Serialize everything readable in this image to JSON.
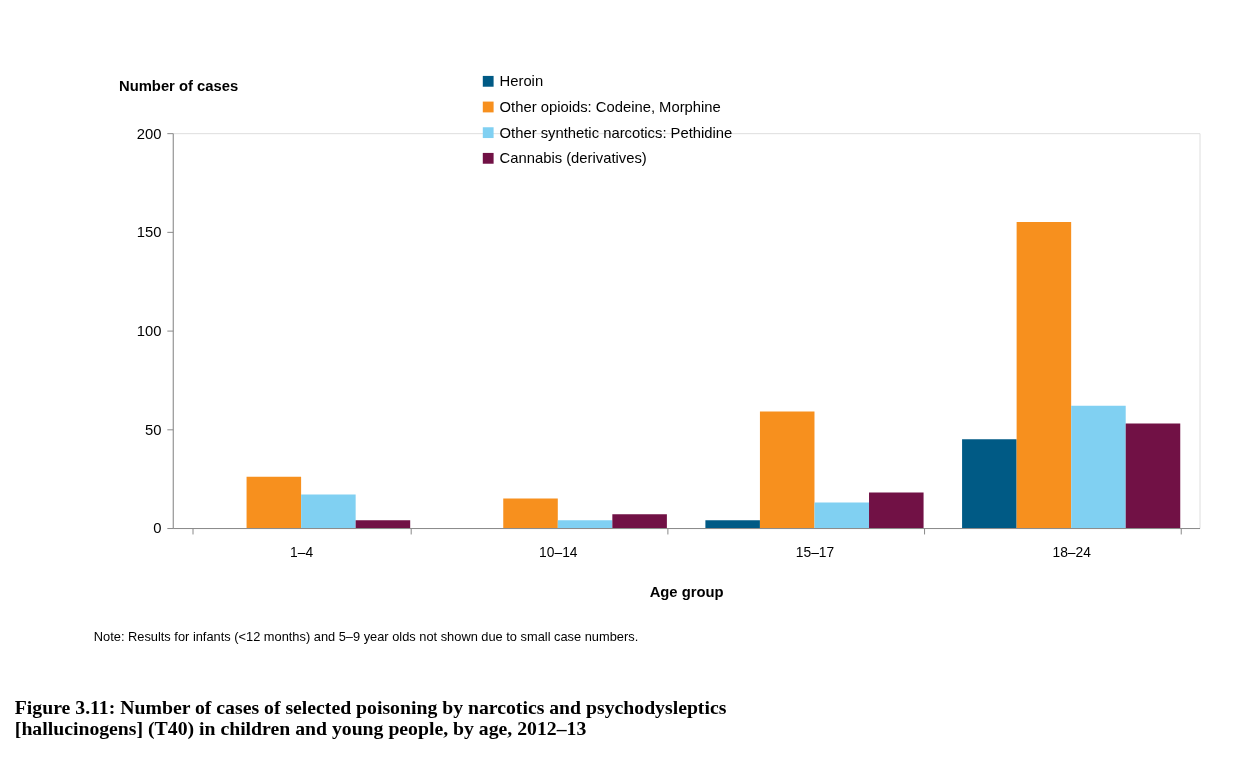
{
  "chart_data": {
    "type": "bar",
    "title": "Figure 3.11: Number of cases of selected poisoning by narcotics and psychodysleptics [hallucinogens] (T40) in children and young people, by age, 2012–13",
    "xlabel": "Age group",
    "ylabel": "Number of cases",
    "categories": [
      "1–4",
      "10–14",
      "15–17",
      "18–24"
    ],
    "series": [
      {
        "name": "Heroin",
        "color": "#005a85",
        "values": [
          0,
          0,
          4,
          45
        ]
      },
      {
        "name": "Other opioids: Codeine, Morphine",
        "color": "#f7901e",
        "values": [
          26,
          15,
          59,
          155
        ]
      },
      {
        "name": "Other synthetic narcotics: Pethidine",
        "color": "#80d0f2",
        "values": [
          17,
          4,
          13,
          62
        ]
      },
      {
        "name": "Cannabis (derivatives)",
        "color": "#711145",
        "values": [
          4,
          7,
          18,
          53
        ]
      }
    ],
    "ylim": [
      0,
      200
    ],
    "yticks": [
      0,
      50,
      100,
      150,
      200
    ],
    "grid": false,
    "legend": "top",
    "annotations": [
      "Note: Results for infants (<12 months) and 5–9 year olds not shown due to small case numbers."
    ]
  }
}
